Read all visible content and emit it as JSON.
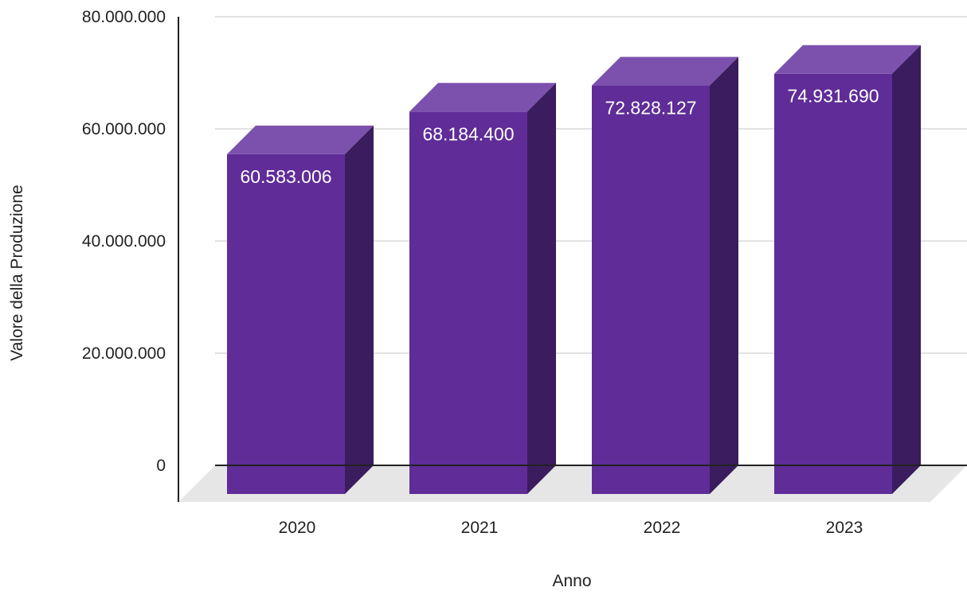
{
  "chart_data": {
    "type": "bar",
    "style": "3d",
    "categories": [
      "2020",
      "2021",
      "2022",
      "2023"
    ],
    "series": [
      {
        "values": [
          60583006,
          68184400,
          72828127,
          74931690
        ],
        "value_labels": [
          "60.583.006",
          "68.184.400",
          "72.828.127",
          "74.931.690"
        ]
      }
    ],
    "xlabel": "Anno",
    "ylabel": "Valore della Produzione",
    "ylim": [
      0,
      80000000
    ],
    "yticks": [
      0,
      20000000,
      40000000,
      60000000,
      80000000
    ],
    "ytick_labels": [
      "0",
      "20.000.000",
      "40.000.000",
      "60.000.000",
      "80.000.000"
    ],
    "grid": true,
    "legend": "none",
    "colors": {
      "front": "#5f2c98",
      "top": "#7c51ad",
      "side": "#3b1c5e",
      "floor": "#e6e6e6"
    }
  }
}
